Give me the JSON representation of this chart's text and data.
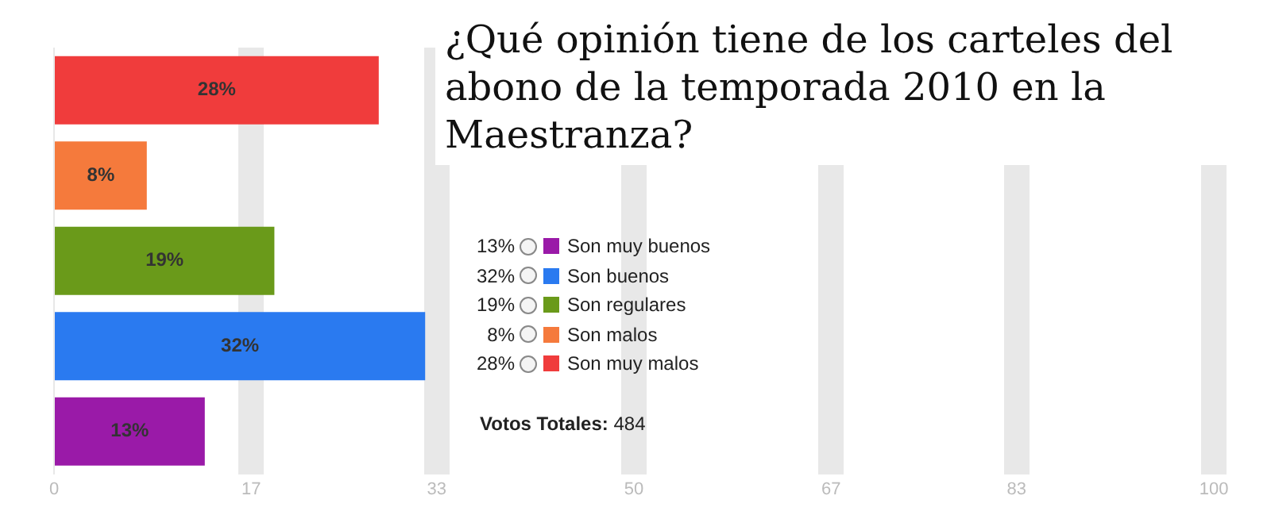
{
  "chart_data": {
    "type": "bar",
    "orientation": "horizontal",
    "title": "¿Qué opinión tiene de los carteles del abono de la temporada 2010 en la Maestranza?",
    "categories": [
      null,
      null,
      null,
      null,
      null
    ],
    "series": [
      {
        "name": "Son muy malos",
        "color": "#f03c3c",
        "values": [
          28,
          null,
          null,
          null,
          null
        ],
        "value_labels": [
          "28%",
          null,
          null,
          null,
          null
        ]
      },
      {
        "name": "Son malos",
        "color": "#f57a3c",
        "values": [
          null,
          8,
          null,
          null,
          null
        ],
        "value_labels": [
          null,
          "8%",
          null,
          null,
          null
        ]
      },
      {
        "name": "Son regulares",
        "color": "#6a9a1a",
        "values": [
          null,
          null,
          19,
          null,
          null
        ],
        "value_labels": [
          null,
          null,
          "19%",
          null,
          null
        ]
      },
      {
        "name": "Son buenos",
        "color": "#2a7af0",
        "values": [
          null,
          null,
          null,
          32,
          null
        ],
        "value_labels": [
          null,
          null,
          null,
          "32%",
          null
        ]
      },
      {
        "name": "Son muy buenos",
        "color": "#9a1aa8",
        "values": [
          null,
          null,
          null,
          null,
          13
        ],
        "value_labels": [
          null,
          null,
          null,
          null,
          "13%"
        ]
      }
    ],
    "stacked": true,
    "xlim": [
      0,
      100
    ],
    "xticks": [
      0,
      17,
      33,
      50,
      67,
      83,
      100
    ],
    "grid": "x",
    "tick_labels": "x",
    "legend": "right",
    "annotations": [
      "Votos Totales: 484"
    ]
  }
}
